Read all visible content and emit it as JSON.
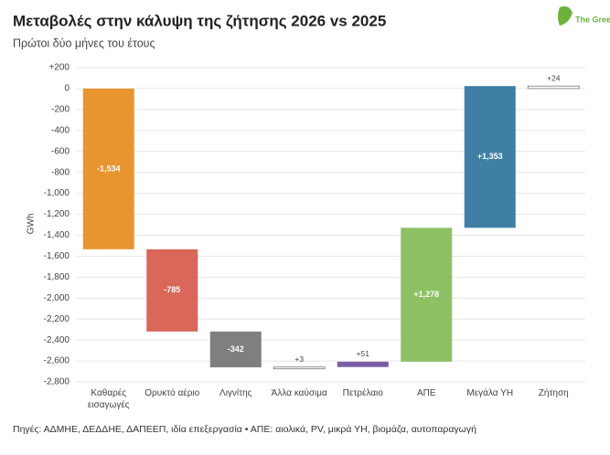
{
  "chart_data": {
    "type": "waterfall",
    "title": "Μεταβολές στην κάλυψη της ζήτησης 2026 vs 2025",
    "subtitle": "Πρώτοι δύο μήνες του έτους",
    "y_label": "GWh",
    "logo": "The Green Tank",
    "footer": "Πηγές: ΑΔΜΗΕ, ΔΕΔΔΗΕ, ΔΑΠΕΕΠ, ιδία επεξεργασία • ΑΠΕ: αιολικά, PV, μικρά ΥΗ, βιομάζα, αυτοπαραγωγή",
    "categories": [
      "Καθαρές εισαγωγές",
      "Ορυκτό αέριο",
      "Λιγνίτης",
      "Άλλα καύσιμα",
      "Πετρέλαιο",
      "ΑΠΕ",
      "Μεγάλα ΥΗ",
      "Ζήτηση"
    ],
    "values": [
      -1534,
      -785,
      -342,
      3,
      51,
      1278,
      1353,
      24
    ],
    "value_labels": [
      "-1,534",
      "-785",
      "-342",
      "+3",
      "+51",
      "+1,278",
      "+1,353",
      "+24"
    ],
    "colors": [
      "#e8952f",
      "#d9675a",
      "#7f7f7f",
      "#ffffff",
      "#7b5ea7",
      "#8dc063",
      "#3f7fa6",
      "#ffffff"
    ],
    "ylim": [
      -2800,
      200
    ],
    "yticks": [
      {
        "value": 200,
        "label": "+200"
      },
      0,
      -200,
      -400,
      -600,
      -800,
      {
        "value": -1000,
        "label": "-1,000"
      },
      {
        "value": -1200,
        "label": "-1,200"
      },
      {
        "value": -1400,
        "label": "-1,400"
      },
      {
        "value": -1600,
        "label": "-1,600"
      },
      {
        "value": -1800,
        "label": "-1,800"
      },
      {
        "value": -2000,
        "label": "-2,000"
      },
      {
        "value": -2200,
        "label": "-2,200"
      },
      {
        "value": -2400,
        "label": "-2,400"
      },
      {
        "value": -2600,
        "label": "-2,600"
      },
      {
        "value": -2800,
        "label": "-2,800"
      }
    ],
    "grid": true
  }
}
